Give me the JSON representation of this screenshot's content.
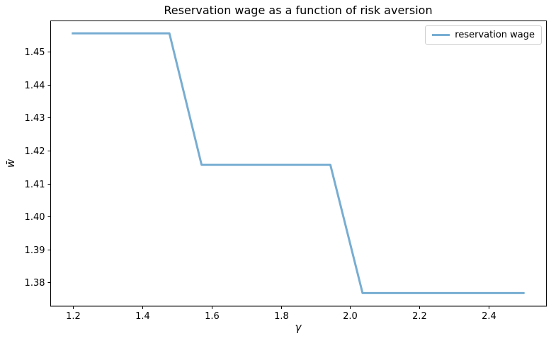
{
  "figure": {
    "background": "#ffffff",
    "frame_color": "#000000"
  },
  "chart_data": {
    "type": "line",
    "title": "Reservation wage as a function of risk aversion",
    "xlabel": "γ",
    "ylabel": "w̄",
    "x": [
      1.2,
      1.2929,
      1.3857,
      1.4786,
      1.5714,
      1.6643,
      1.7571,
      1.85,
      1.9429,
      2.0357,
      2.1286,
      2.2214,
      2.3143,
      2.4071,
      2.5
    ],
    "series": [
      {
        "name": "reservation wage",
        "color": "#78add2",
        "linewidth": 3,
        "values": [
          1.4556,
          1.4556,
          1.4556,
          1.4556,
          1.4157,
          1.4157,
          1.4157,
          1.4157,
          1.4157,
          1.3768,
          1.3768,
          1.3768,
          1.3768,
          1.3768,
          1.3768
        ]
      }
    ],
    "xlim": [
      1.135,
      2.565
    ],
    "ylim": [
      1.3729,
      1.4595
    ],
    "xticks": [
      1.2,
      1.4,
      1.6,
      1.8,
      2.0,
      2.2,
      2.4
    ],
    "xtick_labels": [
      "1.2",
      "1.4",
      "1.6",
      "1.8",
      "2.0",
      "2.2",
      "2.4"
    ],
    "yticks": [
      1.38,
      1.39,
      1.4,
      1.41,
      1.42,
      1.43,
      1.44,
      1.45
    ],
    "ytick_labels": [
      "1.38",
      "1.39",
      "1.40",
      "1.41",
      "1.42",
      "1.43",
      "1.44",
      "1.45"
    ],
    "grid": false,
    "legend": {
      "position": "upper right",
      "entries": [
        "reservation wage"
      ]
    }
  }
}
